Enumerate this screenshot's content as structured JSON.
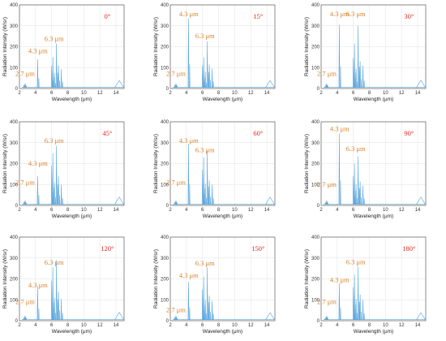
{
  "figure": {
    "background": "#ffffff"
  },
  "colors": {
    "series": "#5aa6dd",
    "annotation": "#d9822b",
    "angle_label": "#e0251b",
    "axes": "#444444",
    "grid": "#e2e2e2"
  },
  "chart_data": [
    {
      "type": "line",
      "angle_label": "0°",
      "xlabel": "Wavelength (μm)",
      "ylabel": "Radiation Intensity (W/sr)",
      "xlim": [
        2,
        15
      ],
      "ylim": [
        0,
        400
      ],
      "xticks": [
        2,
        4,
        6,
        8,
        10,
        12,
        14
      ],
      "yticks": [
        0,
        100,
        200,
        300,
        400
      ],
      "grid": true,
      "peaks": [
        {
          "x": 2.7,
          "y": 22
        },
        {
          "x": 4.26,
          "y": 140
        },
        {
          "x": 6.0,
          "y": 108
        },
        {
          "x": 6.15,
          "y": 150
        },
        {
          "x": 6.35,
          "y": 75
        },
        {
          "x": 6.6,
          "y": 215
        },
        {
          "x": 6.85,
          "y": 110
        },
        {
          "x": 7.2,
          "y": 92
        },
        {
          "x": 14.4,
          "y": 38
        }
      ],
      "annotations": [
        {
          "text": "2.7 μm",
          "x": 2.7,
          "y": 60
        },
        {
          "text": "4.3 μm",
          "x": 4.3,
          "y": 168
        },
        {
          "text": "6.3 μm",
          "x": 6.3,
          "y": 228
        }
      ]
    },
    {
      "type": "line",
      "angle_label": "15°",
      "xlabel": "Wavelength (μm)",
      "ylabel": "Radiation Intensity (W/sr)",
      "xlim": [
        2,
        15
      ],
      "ylim": [
        0,
        400
      ],
      "xticks": [
        2,
        4,
        6,
        8,
        10,
        12,
        14
      ],
      "yticks": [
        0,
        100,
        200,
        300,
        400
      ],
      "grid": true,
      "peaks": [
        {
          "x": 2.7,
          "y": 22
        },
        {
          "x": 4.26,
          "y": 335
        },
        {
          "x": 6.0,
          "y": 110
        },
        {
          "x": 6.15,
          "y": 150
        },
        {
          "x": 6.35,
          "y": 80
        },
        {
          "x": 6.6,
          "y": 225
        },
        {
          "x": 6.85,
          "y": 115
        },
        {
          "x": 7.2,
          "y": 95
        },
        {
          "x": 14.4,
          "y": 38
        }
      ],
      "annotations": [
        {
          "text": "2.7 μm",
          "x": 2.7,
          "y": 60
        },
        {
          "text": "4.3 μm",
          "x": 4.3,
          "y": 345
        },
        {
          "text": "6.3 μm",
          "x": 6.3,
          "y": 240
        }
      ]
    },
    {
      "type": "line",
      "angle_label": "30°",
      "xlabel": "Wavelength (μm)",
      "ylabel": "Radiation Intensity (W/sr)",
      "xlim": [
        2,
        15
      ],
      "ylim": [
        0,
        400
      ],
      "xticks": [
        2,
        4,
        6,
        8,
        10,
        12,
        14
      ],
      "yticks": [
        0,
        100,
        200,
        300,
        400
      ],
      "grid": true,
      "peaks": [
        {
          "x": 2.7,
          "y": 22
        },
        {
          "x": 4.26,
          "y": 305
        },
        {
          "x": 6.0,
          "y": 145
        },
        {
          "x": 6.15,
          "y": 215
        },
        {
          "x": 6.35,
          "y": 95
        },
        {
          "x": 6.6,
          "y": 300
        },
        {
          "x": 6.85,
          "y": 130
        },
        {
          "x": 7.2,
          "y": 110
        },
        {
          "x": 14.4,
          "y": 40
        }
      ],
      "annotations": [
        {
          "text": "2.7 μm",
          "x": 2.7,
          "y": 60
        },
        {
          "text": "4.3 μm",
          "x": 4.3,
          "y": 345
        },
        {
          "text": "6.3 μm",
          "x": 6.3,
          "y": 345
        }
      ]
    },
    {
      "type": "line",
      "angle_label": "45°",
      "xlabel": "Wavelength (μm)",
      "ylabel": "Radiation Intensity (W/sr)",
      "xlim": [
        2,
        15
      ],
      "ylim": [
        0,
        400
      ],
      "xticks": [
        2,
        4,
        6,
        8,
        10,
        12,
        14
      ],
      "yticks": [
        0,
        100,
        200,
        300,
        400
      ],
      "grid": true,
      "peaks": [
        {
          "x": 2.7,
          "y": 22
        },
        {
          "x": 4.26,
          "y": 140
        },
        {
          "x": 6.0,
          "y": 190
        },
        {
          "x": 6.15,
          "y": 250
        },
        {
          "x": 6.35,
          "y": 110
        },
        {
          "x": 6.6,
          "y": 285
        },
        {
          "x": 6.85,
          "y": 140
        },
        {
          "x": 7.2,
          "y": 100
        },
        {
          "x": 14.4,
          "y": 40
        }
      ],
      "annotations": [
        {
          "text": "2.7 μm",
          "x": 2.7,
          "y": 100
        },
        {
          "text": "4.3 μm",
          "x": 4.3,
          "y": 190
        },
        {
          "text": "6.3 μm",
          "x": 6.3,
          "y": 300
        }
      ]
    },
    {
      "type": "line",
      "angle_label": "60°",
      "xlabel": "Wavelength (μm)",
      "ylabel": "Radiation Intensity (W/sr)",
      "xlim": [
        2,
        15
      ],
      "ylim": [
        0,
        400
      ],
      "xticks": [
        2,
        4,
        6,
        8,
        10,
        12,
        14
      ],
      "yticks": [
        0,
        100,
        200,
        300,
        400
      ],
      "grid": true,
      "peaks": [
        {
          "x": 2.7,
          "y": 22
        },
        {
          "x": 4.26,
          "y": 295
        },
        {
          "x": 6.0,
          "y": 170
        },
        {
          "x": 6.15,
          "y": 230
        },
        {
          "x": 6.35,
          "y": 105
        },
        {
          "x": 6.6,
          "y": 260
        },
        {
          "x": 6.85,
          "y": 120
        },
        {
          "x": 7.2,
          "y": 100
        },
        {
          "x": 14.4,
          "y": 40
        }
      ],
      "annotations": [
        {
          "text": "2.7 μm",
          "x": 2.7,
          "y": 100
        },
        {
          "text": "4.3 μm",
          "x": 4.3,
          "y": 300
        },
        {
          "text": "6.3 μm",
          "x": 6.3,
          "y": 255
        }
      ]
    },
    {
      "type": "line",
      "angle_label": "90°",
      "xlabel": "Wavelength (μm)",
      "ylabel": "Radiation Intensity (W/sr)",
      "xlim": [
        2,
        15
      ],
      "ylim": [
        0,
        400
      ],
      "xticks": [
        2,
        4,
        6,
        8,
        10,
        12,
        14
      ],
      "yticks": [
        0,
        100,
        200,
        300,
        400
      ],
      "grid": true,
      "peaks": [
        {
          "x": 2.7,
          "y": 22
        },
        {
          "x": 4.26,
          "y": 345
        },
        {
          "x": 6.0,
          "y": 140
        },
        {
          "x": 6.15,
          "y": 200
        },
        {
          "x": 6.35,
          "y": 100
        },
        {
          "x": 6.6,
          "y": 235
        },
        {
          "x": 6.85,
          "y": 115
        },
        {
          "x": 7.2,
          "y": 95
        },
        {
          "x": 14.4,
          "y": 40
        }
      ],
      "annotations": [
        {
          "text": "2.7 μm",
          "x": 2.7,
          "y": 90
        },
        {
          "text": "4.3 μm",
          "x": 4.3,
          "y": 355
        },
        {
          "text": "6.3 μm",
          "x": 6.3,
          "y": 260
        }
      ]
    },
    {
      "type": "line",
      "angle_label": "120°",
      "xlabel": "Wavelength (μm)",
      "ylabel": "Radiation Intensity (W/sr)",
      "xlim": [
        2,
        15
      ],
      "ylim": [
        0,
        400
      ],
      "xticks": [
        2,
        4,
        6,
        8,
        10,
        12,
        14
      ],
      "yticks": [
        0,
        100,
        200,
        300,
        400
      ],
      "grid": true,
      "peaks": [
        {
          "x": 2.7,
          "y": 22
        },
        {
          "x": 4.26,
          "y": 165
        },
        {
          "x": 6.0,
          "y": 190
        },
        {
          "x": 6.15,
          "y": 255
        },
        {
          "x": 6.35,
          "y": 110
        },
        {
          "x": 6.6,
          "y": 290
        },
        {
          "x": 6.85,
          "y": 140
        },
        {
          "x": 7.2,
          "y": 105
        },
        {
          "x": 14.4,
          "y": 40
        }
      ],
      "annotations": [
        {
          "text": "2.7 μm",
          "x": 2.7,
          "y": 80
        },
        {
          "text": "4.3 μm",
          "x": 4.3,
          "y": 160
        },
        {
          "text": "6.3 μm",
          "x": 6.3,
          "y": 268
        }
      ]
    },
    {
      "type": "line",
      "angle_label": "150°",
      "xlabel": "Wavelength (μm)",
      "ylabel": "Radiation Intensity (W/sr)",
      "xlim": [
        2,
        15
      ],
      "ylim": [
        0,
        400
      ],
      "xticks": [
        2,
        4,
        6,
        8,
        10,
        12,
        14
      ],
      "yticks": [
        0,
        100,
        200,
        300,
        400
      ],
      "grid": true,
      "peaks": [
        {
          "x": 2.7,
          "y": 22
        },
        {
          "x": 4.26,
          "y": 185
        },
        {
          "x": 6.0,
          "y": 150
        },
        {
          "x": 6.15,
          "y": 210
        },
        {
          "x": 6.35,
          "y": 100
        },
        {
          "x": 6.6,
          "y": 255
        },
        {
          "x": 6.85,
          "y": 120
        },
        {
          "x": 7.2,
          "y": 95
        },
        {
          "x": 14.4,
          "y": 38
        }
      ],
      "annotations": [
        {
          "text": "2.7 μm",
          "x": 2.7,
          "y": 40
        },
        {
          "text": "4.3 μm",
          "x": 4.3,
          "y": 205
        },
        {
          "text": "6.3 μm",
          "x": 6.3,
          "y": 265
        }
      ]
    },
    {
      "type": "line",
      "angle_label": "180°",
      "xlabel": "Wavelength (μm)",
      "ylabel": "Radiation Intensity (W/sr)",
      "xlim": [
        2,
        15
      ],
      "ylim": [
        0,
        400
      ],
      "xticks": [
        2,
        4,
        6,
        8,
        10,
        12,
        14
      ],
      "yticks": [
        0,
        100,
        200,
        300,
        400
      ],
      "grid": true,
      "peaks": [
        {
          "x": 2.7,
          "y": 22
        },
        {
          "x": 4.26,
          "y": 180
        },
        {
          "x": 6.0,
          "y": 160
        },
        {
          "x": 6.15,
          "y": 220
        },
        {
          "x": 6.35,
          "y": 105
        },
        {
          "x": 6.6,
          "y": 258
        },
        {
          "x": 6.85,
          "y": 125
        },
        {
          "x": 7.2,
          "y": 100
        },
        {
          "x": 14.4,
          "y": 38
        }
      ],
      "annotations": [
        {
          "text": "2.7 μm",
          "x": 2.7,
          "y": 80
        },
        {
          "text": "4.3 μm",
          "x": 4.3,
          "y": 185
        },
        {
          "text": "6.3 μm",
          "x": 6.3,
          "y": 270
        }
      ]
    }
  ]
}
